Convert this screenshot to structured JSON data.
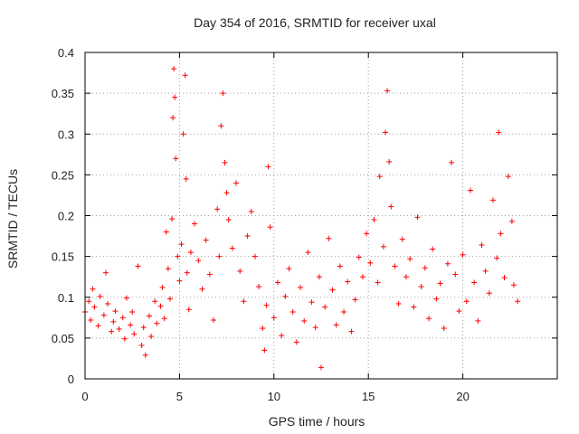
{
  "chart_data": {
    "type": "scatter",
    "title": "Day 354 of 2016, SRMTID for receiver uxal",
    "xlabel": "GPS time / hours",
    "ylabel": "SRMTID / TECUs",
    "xlim": [
      0,
      25
    ],
    "ylim": [
      0,
      0.4
    ],
    "x_ticks": [
      0,
      5,
      10,
      15,
      20
    ],
    "x_tick_labels": [
      "0",
      "5",
      "10",
      "15",
      "20"
    ],
    "y_ticks": [
      0,
      0.05,
      0.1,
      0.15,
      0.2,
      0.25,
      0.3,
      0.35,
      0.4
    ],
    "y_tick_labels": [
      "0",
      "0.05",
      "0.1",
      "0.15",
      "0.2",
      "0.25",
      "0.3",
      "0.35",
      "0.4"
    ],
    "grid": true,
    "marker": "+",
    "color": "#ff0000",
    "series": [
      {
        "name": "SRMTID",
        "points": [
          [
            0.0,
            0.082
          ],
          [
            0.2,
            0.095
          ],
          [
            0.3,
            0.072
          ],
          [
            0.4,
            0.11
          ],
          [
            0.5,
            0.088
          ],
          [
            0.7,
            0.065
          ],
          [
            0.8,
            0.101
          ],
          [
            1.0,
            0.078
          ],
          [
            1.1,
            0.13
          ],
          [
            1.2,
            0.092
          ],
          [
            1.4,
            0.058
          ],
          [
            1.5,
            0.07
          ],
          [
            1.6,
            0.083
          ],
          [
            1.8,
            0.061
          ],
          [
            2.0,
            0.075
          ],
          [
            2.1,
            0.049
          ],
          [
            2.2,
            0.099
          ],
          [
            2.4,
            0.066
          ],
          [
            2.5,
            0.082
          ],
          [
            2.6,
            0.055
          ],
          [
            2.8,
            0.138
          ],
          [
            3.0,
            0.041
          ],
          [
            3.1,
            0.063
          ],
          [
            3.2,
            0.029
          ],
          [
            3.4,
            0.077
          ],
          [
            3.5,
            0.052
          ],
          [
            3.7,
            0.095
          ],
          [
            3.8,
            0.068
          ],
          [
            4.0,
            0.089
          ],
          [
            4.1,
            0.112
          ],
          [
            4.2,
            0.074
          ],
          [
            4.3,
            0.18
          ],
          [
            4.4,
            0.135
          ],
          [
            4.5,
            0.098
          ],
          [
            4.6,
            0.196
          ],
          [
            4.65,
            0.32
          ],
          [
            4.7,
            0.38
          ],
          [
            4.75,
            0.345
          ],
          [
            4.8,
            0.27
          ],
          [
            4.9,
            0.15
          ],
          [
            5.0,
            0.12
          ],
          [
            5.1,
            0.165
          ],
          [
            5.2,
            0.3
          ],
          [
            5.3,
            0.372
          ],
          [
            5.35,
            0.245
          ],
          [
            5.4,
            0.13
          ],
          [
            5.5,
            0.085
          ],
          [
            5.6,
            0.155
          ],
          [
            5.8,
            0.19
          ],
          [
            6.0,
            0.145
          ],
          [
            6.2,
            0.11
          ],
          [
            6.4,
            0.17
          ],
          [
            6.6,
            0.128
          ],
          [
            6.8,
            0.072
          ],
          [
            7.0,
            0.208
          ],
          [
            7.1,
            0.15
          ],
          [
            7.2,
            0.31
          ],
          [
            7.3,
            0.35
          ],
          [
            7.4,
            0.265
          ],
          [
            7.5,
            0.228
          ],
          [
            7.6,
            0.195
          ],
          [
            7.8,
            0.16
          ],
          [
            8.0,
            0.24
          ],
          [
            8.2,
            0.132
          ],
          [
            8.4,
            0.095
          ],
          [
            8.6,
            0.175
          ],
          [
            8.8,
            0.205
          ],
          [
            9.0,
            0.15
          ],
          [
            9.2,
            0.113
          ],
          [
            9.4,
            0.062
          ],
          [
            9.5,
            0.035
          ],
          [
            9.6,
            0.09
          ],
          [
            9.7,
            0.26
          ],
          [
            9.8,
            0.186
          ],
          [
            10.0,
            0.075
          ],
          [
            10.2,
            0.118
          ],
          [
            10.4,
            0.053
          ],
          [
            10.6,
            0.101
          ],
          [
            10.8,
            0.135
          ],
          [
            11.0,
            0.082
          ],
          [
            11.2,
            0.045
          ],
          [
            11.4,
            0.112
          ],
          [
            11.6,
            0.071
          ],
          [
            11.8,
            0.155
          ],
          [
            12.0,
            0.094
          ],
          [
            12.2,
            0.063
          ],
          [
            12.4,
            0.125
          ],
          [
            12.5,
            0.014
          ],
          [
            12.7,
            0.088
          ],
          [
            12.9,
            0.172
          ],
          [
            13.1,
            0.109
          ],
          [
            13.3,
            0.066
          ],
          [
            13.5,
            0.138
          ],
          [
            13.7,
            0.082
          ],
          [
            13.9,
            0.119
          ],
          [
            14.1,
            0.058
          ],
          [
            14.3,
            0.097
          ],
          [
            14.5,
            0.149
          ],
          [
            14.7,
            0.125
          ],
          [
            14.9,
            0.178
          ],
          [
            15.1,
            0.142
          ],
          [
            15.3,
            0.195
          ],
          [
            15.5,
            0.118
          ],
          [
            15.6,
            0.248
          ],
          [
            15.8,
            0.162
          ],
          [
            15.9,
            0.302
          ],
          [
            16.0,
            0.353
          ],
          [
            16.1,
            0.266
          ],
          [
            16.2,
            0.211
          ],
          [
            16.4,
            0.138
          ],
          [
            16.6,
            0.092
          ],
          [
            16.8,
            0.171
          ],
          [
            17.0,
            0.125
          ],
          [
            17.2,
            0.147
          ],
          [
            17.4,
            0.088
          ],
          [
            17.6,
            0.198
          ],
          [
            17.8,
            0.113
          ],
          [
            18.0,
            0.136
          ],
          [
            18.2,
            0.074
          ],
          [
            18.4,
            0.159
          ],
          [
            18.6,
            0.098
          ],
          [
            18.8,
            0.117
          ],
          [
            19.0,
            0.062
          ],
          [
            19.2,
            0.141
          ],
          [
            19.4,
            0.265
          ],
          [
            19.6,
            0.128
          ],
          [
            19.8,
            0.083
          ],
          [
            20.0,
            0.152
          ],
          [
            20.2,
            0.095
          ],
          [
            20.4,
            0.231
          ],
          [
            20.6,
            0.118
          ],
          [
            20.8,
            0.071
          ],
          [
            21.0,
            0.164
          ],
          [
            21.2,
            0.132
          ],
          [
            21.4,
            0.105
          ],
          [
            21.6,
            0.219
          ],
          [
            21.8,
            0.148
          ],
          [
            21.9,
            0.302
          ],
          [
            22.0,
            0.178
          ],
          [
            22.2,
            0.124
          ],
          [
            22.4,
            0.248
          ],
          [
            22.6,
            0.193
          ],
          [
            22.7,
            0.115
          ],
          [
            22.9,
            0.095
          ]
        ]
      }
    ]
  }
}
